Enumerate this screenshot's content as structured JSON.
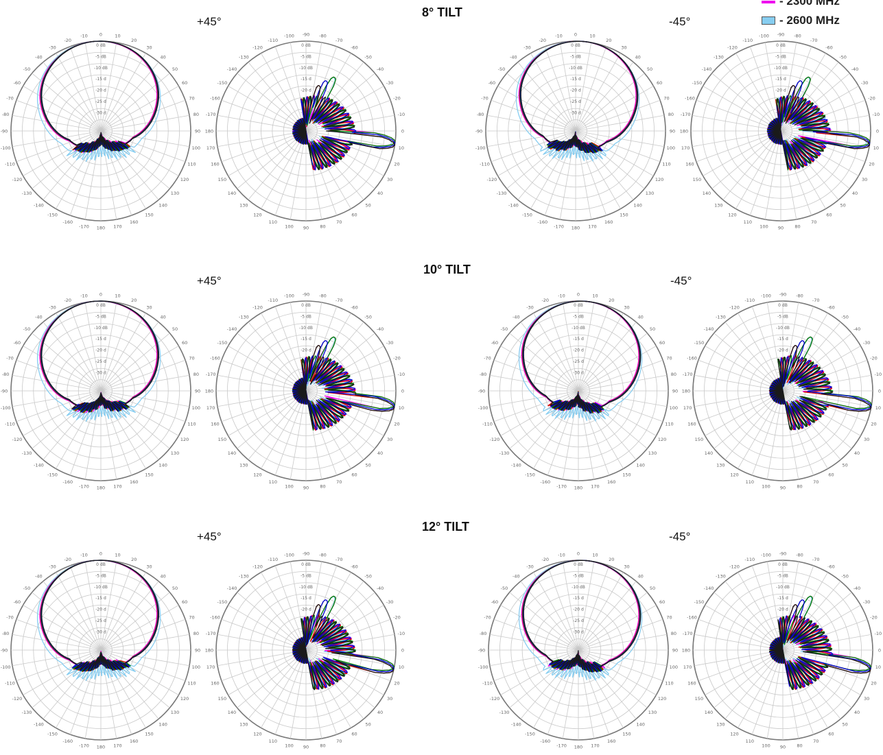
{
  "legend": {
    "items": [
      {
        "label": "- 2300 MHz",
        "color": "#ee00ee",
        "swatch": "line"
      },
      {
        "label": "- 2600 MHz",
        "color": "#87cdf0",
        "swatch": "box"
      }
    ]
  },
  "colors": {
    "grid": "#c8c8c8",
    "outer_ring": "#777777",
    "tick_text": "#666666",
    "series": [
      "#ee00ee",
      "#87cdf0",
      "#d40000",
      "#008000",
      "#0000cc",
      "#1a1a1a"
    ]
  },
  "rows": [
    {
      "title": "8° TILT",
      "pol_plus": "+45°",
      "pol_minus": "-45°"
    },
    {
      "title": "10° TILT",
      "pol_plus": "+45°",
      "pol_minus": "-45°"
    },
    {
      "title": "12° TILT",
      "pol_plus": "+45°",
      "pol_minus": "-45°"
    }
  ],
  "chart_data": {
    "type": "polar",
    "description_axes": {
      "radial_labels": [
        "0 dB",
        "-5 dB",
        "-10 dB",
        "-15 d",
        "-20 d",
        "-25 d",
        "-30 d"
      ],
      "angle_step_deg": 10
    },
    "series_names": [
      "2300 MHz",
      "2600 MHz"
    ],
    "charts": [
      {
        "row": 0,
        "pol": "+45",
        "plane": "horizontal",
        "angle_labels": "h"
      },
      {
        "row": 0,
        "pol": "+45",
        "plane": "vertical",
        "tilt_deg": 8,
        "angle_labels": "v"
      },
      {
        "row": 0,
        "pol": "-45",
        "plane": "horizontal",
        "angle_labels": "h"
      },
      {
        "row": 0,
        "pol": "-45",
        "plane": "vertical",
        "tilt_deg": 8,
        "angle_labels": "v"
      },
      {
        "row": 1,
        "pol": "+45",
        "plane": "horizontal",
        "angle_labels": "h"
      },
      {
        "row": 1,
        "pol": "+45",
        "plane": "vertical",
        "tilt_deg": 10,
        "angle_labels": "v"
      },
      {
        "row": 1,
        "pol": "-45",
        "plane": "horizontal",
        "angle_labels": "h"
      },
      {
        "row": 1,
        "pol": "-45",
        "plane": "vertical",
        "tilt_deg": 10,
        "angle_labels": "v"
      },
      {
        "row": 2,
        "pol": "+45",
        "plane": "horizontal",
        "angle_labels": "h"
      },
      {
        "row": 2,
        "pol": "+45",
        "plane": "vertical",
        "tilt_deg": 12,
        "angle_labels": "v"
      },
      {
        "row": 2,
        "pol": "-45",
        "plane": "horizontal",
        "angle_labels": "h"
      },
      {
        "row": 2,
        "pol": "-45",
        "plane": "vertical",
        "tilt_deg": 12,
        "angle_labels": "v"
      }
    ]
  }
}
